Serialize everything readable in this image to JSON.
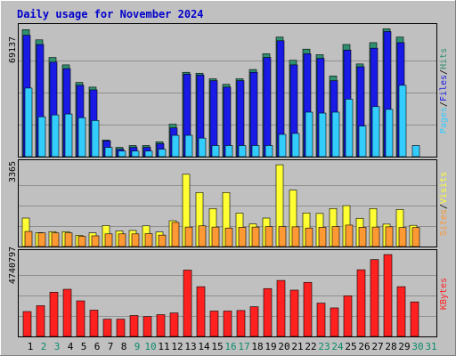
{
  "title": "Daily usage for November 2024",
  "colors": {
    "background": "#c0c0c0",
    "plot_bg": "#c0c0c0",
    "title": "#0000cc",
    "hits": "#2f8f6f",
    "files": "#1a1ae6",
    "pages": "#33ccff",
    "visits": "#ffff33",
    "sites": "#ff9933",
    "kbytes": "#ff2020",
    "weekend_label": "#0a8a6a",
    "weekday_label": "#000000"
  },
  "chart_data": [
    {
      "type": "bar",
      "panel": "hits-files-pages",
      "axis_max_label": "69137",
      "ylim": [
        0,
        69137
      ],
      "side_legend": [
        {
          "name": "Pages",
          "color": "#33ccff"
        },
        {
          "name": "Files",
          "color": "#1a1ae6"
        },
        {
          "name": "Hits",
          "color": "#2f8f6f"
        }
      ],
      "categories": [
        "1",
        "2",
        "3",
        "4",
        "5",
        "6",
        "7",
        "8",
        "9",
        "10",
        "11",
        "12",
        "13",
        "14",
        "15",
        "16",
        "17",
        "18",
        "19",
        "20",
        "21",
        "22",
        "23",
        "24",
        "25",
        "26",
        "27",
        "28",
        "29",
        "30",
        "31"
      ],
      "series": [
        {
          "name": "Hits",
          "values": [
            68500,
            63000,
            53500,
            49500,
            40000,
            37500,
            9000,
            5000,
            6000,
            6000,
            8000,
            17500,
            45500,
            45000,
            42000,
            39000,
            42000,
            47000,
            55500,
            64500,
            52000,
            58000,
            55000,
            43500,
            60500,
            50000,
            61500,
            69000,
            64500,
            0,
            0
          ]
        },
        {
          "name": "Files",
          "values": [
            65500,
            60500,
            51000,
            47500,
            38500,
            36000,
            8500,
            4000,
            5000,
            5000,
            7000,
            15500,
            44500,
            44000,
            41000,
            37500,
            41000,
            45500,
            53500,
            62500,
            49500,
            55500,
            53000,
            41000,
            57500,
            48500,
            58500,
            67500,
            61500,
            0,
            0
          ]
        },
        {
          "name": "Pages",
          "values": [
            37000,
            21500,
            22500,
            23000,
            21000,
            19500,
            5000,
            3000,
            3000,
            3000,
            4000,
            11500,
            11500,
            10000,
            6000,
            6000,
            6000,
            6000,
            6000,
            12000,
            12500,
            24000,
            23500,
            24000,
            31000,
            16500,
            27000,
            25500,
            38500,
            6000,
            0
          ]
        }
      ]
    },
    {
      "type": "bar",
      "panel": "visits-sites",
      "axis_max_label": "3365",
      "ylim": [
        0,
        3365
      ],
      "side_legend": [
        {
          "name": "Sites",
          "color": "#ff9933"
        },
        {
          "name": "Visits",
          "color": "#ffff33"
        }
      ],
      "categories": [
        "1",
        "2",
        "3",
        "4",
        "5",
        "6",
        "7",
        "8",
        "9",
        "10",
        "11",
        "12",
        "13",
        "14",
        "15",
        "16",
        "17",
        "18",
        "19",
        "20",
        "21",
        "22",
        "23",
        "24",
        "25",
        "26",
        "27",
        "28",
        "29",
        "30",
        "31"
      ],
      "series": [
        {
          "name": "Visits",
          "values": [
            1170,
            570,
            610,
            610,
            460,
            560,
            860,
            640,
            660,
            850,
            600,
            1060,
            2970,
            2220,
            1560,
            2220,
            1370,
            930,
            1170,
            3360,
            2320,
            1380,
            1360,
            1560,
            1680,
            1160,
            1560,
            920,
            1520,
            870,
            0
          ]
        },
        {
          "name": "Sites",
          "values": [
            620,
            560,
            560,
            560,
            420,
            440,
            520,
            520,
            520,
            530,
            470,
            990,
            800,
            850,
            800,
            760,
            790,
            800,
            820,
            820,
            810,
            760,
            790,
            820,
            880,
            790,
            800,
            810,
            780,
            780,
            0
          ]
        }
      ]
    },
    {
      "type": "bar",
      "panel": "kbytes",
      "axis_max_label": "4740797",
      "ylim": [
        0,
        4740797
      ],
      "side_legend": [
        {
          "name": "KBytes",
          "color": "#ff2020"
        }
      ],
      "categories": [
        "1",
        "2",
        "3",
        "4",
        "5",
        "6",
        "7",
        "8",
        "9",
        "10",
        "11",
        "12",
        "13",
        "14",
        "15",
        "16",
        "17",
        "18",
        "19",
        "20",
        "21",
        "22",
        "23",
        "24",
        "25",
        "26",
        "27",
        "28",
        "29",
        "30",
        "31"
      ],
      "series": [
        {
          "name": "KBytes",
          "values": [
            1440000,
            1780000,
            2560000,
            2730000,
            2060000,
            1520000,
            1000000,
            1000000,
            1210000,
            1150000,
            1260000,
            1360000,
            3840000,
            2880000,
            1470000,
            1470000,
            1500000,
            1720000,
            2770000,
            3240000,
            2680000,
            3130000,
            1930000,
            1650000,
            2350000,
            3860000,
            4450000,
            4740000,
            2880000,
            2000000,
            0
          ]
        }
      ]
    }
  ],
  "x_labels": [
    {
      "day": "1",
      "weekend": false
    },
    {
      "day": "2",
      "weekend": true
    },
    {
      "day": "3",
      "weekend": true
    },
    {
      "day": "4",
      "weekend": false
    },
    {
      "day": "5",
      "weekend": false
    },
    {
      "day": "6",
      "weekend": false
    },
    {
      "day": "7",
      "weekend": false
    },
    {
      "day": "8",
      "weekend": false
    },
    {
      "day": "9",
      "weekend": true
    },
    {
      "day": "10",
      "weekend": true
    },
    {
      "day": "11",
      "weekend": false
    },
    {
      "day": "12",
      "weekend": false
    },
    {
      "day": "13",
      "weekend": false
    },
    {
      "day": "14",
      "weekend": false
    },
    {
      "day": "15",
      "weekend": false
    },
    {
      "day": "16",
      "weekend": true
    },
    {
      "day": "17",
      "weekend": true
    },
    {
      "day": "18",
      "weekend": false
    },
    {
      "day": "19",
      "weekend": false
    },
    {
      "day": "20",
      "weekend": false
    },
    {
      "day": "21",
      "weekend": false
    },
    {
      "day": "22",
      "weekend": false
    },
    {
      "day": "23",
      "weekend": true
    },
    {
      "day": "24",
      "weekend": true
    },
    {
      "day": "25",
      "weekend": false
    },
    {
      "day": "26",
      "weekend": false
    },
    {
      "day": "27",
      "weekend": false
    },
    {
      "day": "28",
      "weekend": false
    },
    {
      "day": "29",
      "weekend": false
    },
    {
      "day": "30",
      "weekend": true
    },
    {
      "day": "31",
      "weekend": true
    }
  ]
}
